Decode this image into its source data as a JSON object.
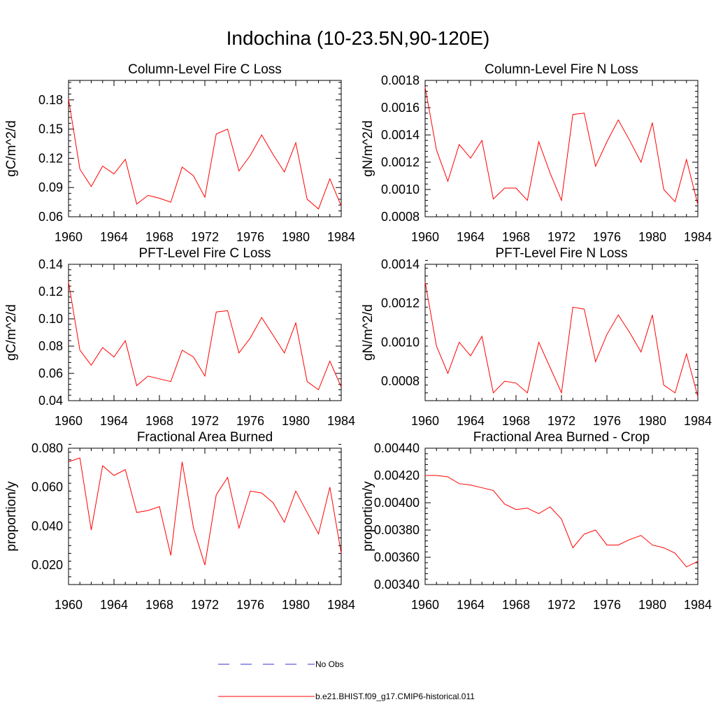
{
  "figure": {
    "title": "Indochina (10-23.5N,90-120E)"
  },
  "legend": {
    "items": [
      {
        "label": "No Obs",
        "color": "#0000ff",
        "style": "dashed"
      },
      {
        "label": "b.e21.BHIST.f09_g17.CMIP6-historical.011",
        "color": "#ff0000",
        "style": "solid"
      }
    ]
  },
  "chart_data": [
    {
      "type": "line",
      "title": "Column-Level Fire C Loss",
      "ylabel": "gC/m^2/d",
      "xlim": [
        1960,
        1984
      ],
      "ylim": [
        0.06,
        0.2
      ],
      "xticks": [
        1960,
        1964,
        1968,
        1972,
        1976,
        1980,
        1984
      ],
      "yticks": [
        0.06,
        0.09,
        0.12,
        0.15,
        0.18
      ],
      "ytick_labels": [
        "0.06",
        "0.09",
        "0.12",
        "0.15",
        "0.18"
      ],
      "x": [
        1960,
        1961,
        1962,
        1963,
        1964,
        1965,
        1966,
        1967,
        1968,
        1969,
        1970,
        1971,
        1972,
        1973,
        1974,
        1975,
        1976,
        1977,
        1978,
        1979,
        1980,
        1981,
        1982,
        1983,
        1984
      ],
      "series": [
        {
          "name": "b.e21.BHIST.f09_g17.CMIP6-historical.011",
          "color": "#ff0000",
          "values": [
            0.181,
            0.109,
            0.091,
            0.112,
            0.104,
            0.119,
            0.073,
            0.082,
            0.079,
            0.075,
            0.111,
            0.102,
            0.08,
            0.145,
            0.15,
            0.107,
            0.123,
            0.144,
            0.124,
            0.106,
            0.136,
            0.078,
            0.068,
            0.099,
            0.071
          ]
        }
      ]
    },
    {
      "type": "line",
      "title": "Column-Level Fire N Loss",
      "ylabel": "gN/m^2/d",
      "xlim": [
        1960,
        1984
      ],
      "ylim": [
        0.0008,
        0.0018
      ],
      "xticks": [
        1960,
        1964,
        1968,
        1972,
        1976,
        1980,
        1984
      ],
      "yticks": [
        0.0008,
        0.001,
        0.0012,
        0.0014,
        0.0016,
        0.0018
      ],
      "ytick_labels": [
        "0.0008",
        "0.0010",
        "0.0012",
        "0.0014",
        "0.0016",
        "0.0018"
      ],
      "x": [
        1960,
        1961,
        1962,
        1963,
        1964,
        1965,
        1966,
        1967,
        1968,
        1969,
        1970,
        1971,
        1972,
        1973,
        1974,
        1975,
        1976,
        1977,
        1978,
        1979,
        1980,
        1981,
        1982,
        1983,
        1984
      ],
      "series": [
        {
          "name": "b.e21.BHIST.f09_g17.CMIP6-historical.011",
          "color": "#ff0000",
          "values": [
            0.00175,
            0.00129,
            0.00106,
            0.00133,
            0.00123,
            0.00136,
            0.00093,
            0.00101,
            0.00101,
            0.00092,
            0.00135,
            0.00112,
            0.00092,
            0.00155,
            0.00156,
            0.00117,
            0.00135,
            0.00151,
            0.00136,
            0.0012,
            0.00149,
            0.001,
            0.00091,
            0.00122,
            0.00089
          ]
        }
      ]
    },
    {
      "type": "line",
      "title": "PFT-Level Fire C Loss",
      "ylabel": "gC/m^2/d",
      "xlim": [
        1960,
        1984
      ],
      "ylim": [
        0.04,
        0.14
      ],
      "xticks": [
        1960,
        1964,
        1968,
        1972,
        1976,
        1980,
        1984
      ],
      "yticks": [
        0.04,
        0.06,
        0.08,
        0.1,
        0.12,
        0.14
      ],
      "ytick_labels": [
        "0.04",
        "0.06",
        "0.08",
        "0.10",
        "0.12",
        "0.14"
      ],
      "x": [
        1960,
        1961,
        1962,
        1963,
        1964,
        1965,
        1966,
        1967,
        1968,
        1969,
        1970,
        1971,
        1972,
        1973,
        1974,
        1975,
        1976,
        1977,
        1978,
        1979,
        1980,
        1981,
        1982,
        1983,
        1984
      ],
      "series": [
        {
          "name": "b.e21.BHIST.f09_g17.CMIP6-historical.011",
          "color": "#ff0000",
          "values": [
            0.127,
            0.077,
            0.066,
            0.079,
            0.072,
            0.084,
            0.051,
            0.058,
            0.056,
            0.054,
            0.077,
            0.072,
            0.058,
            0.105,
            0.106,
            0.075,
            0.086,
            0.101,
            0.088,
            0.075,
            0.097,
            0.054,
            0.048,
            0.069,
            0.05
          ]
        }
      ]
    },
    {
      "type": "line",
      "title": "PFT-Level Fire N Loss",
      "ylabel": "gN/m^2/d",
      "xlim": [
        1960,
        1984
      ],
      "ylim": [
        0.0007,
        0.0014
      ],
      "xticks": [
        1960,
        1964,
        1968,
        1972,
        1976,
        1980,
        1984
      ],
      "yticks": [
        0.0008,
        0.001,
        0.0012,
        0.0014
      ],
      "ytick_labels": [
        "0.0008",
        "0.0010",
        "0.0012",
        "0.0014"
      ],
      "x": [
        1960,
        1961,
        1962,
        1963,
        1964,
        1965,
        1966,
        1967,
        1968,
        1969,
        1970,
        1971,
        1972,
        1973,
        1974,
        1975,
        1976,
        1977,
        1978,
        1979,
        1980,
        1981,
        1982,
        1983,
        1984
      ],
      "series": [
        {
          "name": "b.e21.BHIST.f09_g17.CMIP6-historical.011",
          "color": "#ff0000",
          "values": [
            0.00131,
            0.00098,
            0.00084,
            0.001,
            0.00093,
            0.00103,
            0.00074,
            0.0008,
            0.00079,
            0.00074,
            0.001,
            0.00087,
            0.00074,
            0.00118,
            0.00117,
            0.0009,
            0.00104,
            0.00114,
            0.00105,
            0.00095,
            0.00114,
            0.00078,
            0.00074,
            0.00094,
            0.00072
          ]
        }
      ]
    },
    {
      "type": "line",
      "title": "Fractional Area Burned",
      "ylabel": "proportion/y",
      "xlim": [
        1960,
        1984
      ],
      "ylim": [
        0.01,
        0.08
      ],
      "xticks": [
        1960,
        1964,
        1968,
        1972,
        1976,
        1980,
        1984
      ],
      "yticks": [
        0.02,
        0.04,
        0.06,
        0.08
      ],
      "ytick_labels": [
        "0.020",
        "0.040",
        "0.060",
        "0.080"
      ],
      "x": [
        1960,
        1961,
        1962,
        1963,
        1964,
        1965,
        1966,
        1967,
        1968,
        1969,
        1970,
        1971,
        1972,
        1973,
        1974,
        1975,
        1976,
        1977,
        1978,
        1979,
        1980,
        1981,
        1982,
        1983,
        1984
      ],
      "series": [
        {
          "name": "b.e21.BHIST.f09_g17.CMIP6-historical.011",
          "color": "#ff0000",
          "values": [
            0.073,
            0.075,
            0.038,
            0.071,
            0.066,
            0.069,
            0.047,
            0.048,
            0.05,
            0.025,
            0.073,
            0.039,
            0.02,
            0.056,
            0.065,
            0.039,
            0.058,
            0.057,
            0.052,
            0.042,
            0.058,
            0.047,
            0.036,
            0.06,
            0.026
          ]
        }
      ]
    },
    {
      "type": "line",
      "title": "Fractional Area Burned - Crop",
      "ylabel": "proportion/y",
      "xlim": [
        1960,
        1984
      ],
      "ylim": [
        0.0034,
        0.0044
      ],
      "xticks": [
        1960,
        1964,
        1968,
        1972,
        1976,
        1980,
        1984
      ],
      "yticks": [
        0.0034,
        0.0036,
        0.0038,
        0.004,
        0.0042,
        0.0044
      ],
      "ytick_labels": [
        "0.00340",
        "0.00360",
        "0.00380",
        "0.00400",
        "0.00420",
        "0.00440"
      ],
      "x": [
        1960,
        1961,
        1962,
        1963,
        1964,
        1965,
        1966,
        1967,
        1968,
        1969,
        1970,
        1971,
        1972,
        1973,
        1974,
        1975,
        1976,
        1977,
        1978,
        1979,
        1980,
        1981,
        1982,
        1983,
        1984
      ],
      "series": [
        {
          "name": "b.e21.BHIST.f09_g17.CMIP6-historical.011",
          "color": "#ff0000",
          "values": [
            0.0042,
            0.0042,
            0.00419,
            0.00414,
            0.00413,
            0.00411,
            0.00409,
            0.00399,
            0.00395,
            0.00396,
            0.00392,
            0.00397,
            0.00388,
            0.00367,
            0.00377,
            0.0038,
            0.00369,
            0.00369,
            0.00373,
            0.00376,
            0.00369,
            0.00367,
            0.00363,
            0.00353,
            0.00357
          ]
        }
      ]
    }
  ]
}
